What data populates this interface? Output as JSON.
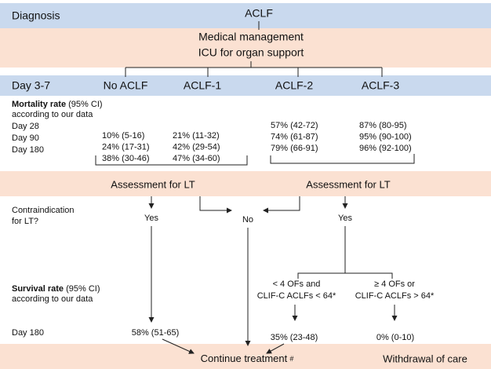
{
  "diagnosis": {
    "label": "Diagnosis",
    "value": "ACLF"
  },
  "management": [
    "Medical management",
    "ICU for organ support"
  ],
  "day_row": {
    "label": "Day 3-7",
    "groups": [
      "No ACLF",
      "ACLF-1",
      "ACLF-2",
      "ACLF-3"
    ]
  },
  "mortality": {
    "title": "Mortality rate",
    "title_suffix": "(95% CI)",
    "subtitle": "according to our data",
    "days": [
      "Day 28",
      "Day 90",
      "Day 180"
    ],
    "columns": [
      [
        "10% (5-16)",
        "24% (17-31)",
        "38% (30-46)"
      ],
      [
        "21% (11-32)",
        "42% (29-54)",
        "47% (34-60)"
      ],
      [
        "57% (42-72)",
        "74% (61-87)",
        "79% (66-91)"
      ],
      [
        "87% (80-95)",
        "95% (90-100)",
        "96% (92-100)"
      ]
    ]
  },
  "assessment": [
    "Assessment for LT",
    "Assessment for LT"
  ],
  "contraindication": {
    "question": [
      "Contraindication",
      "for LT?"
    ],
    "answers": [
      "Yes",
      "No",
      "Yes"
    ]
  },
  "criteria": [
    [
      "< 4 OFs and",
      "CLIF-C ACLFs < 64*"
    ],
    [
      "≥ 4 OFs or",
      "CLIF-C ACLFs > 64*"
    ]
  ],
  "survival": {
    "title": "Survival rate",
    "title_suffix": "(95% CI)",
    "subtitle": "according to our data",
    "day": "Day 180",
    "values": [
      "58% (51-65)",
      "35% (23-48)",
      "0% (0-10)"
    ]
  },
  "outcomes": {
    "continue": "Continue treatment",
    "continue_mark": "#",
    "withdrawal": "Withdrawal of care"
  }
}
